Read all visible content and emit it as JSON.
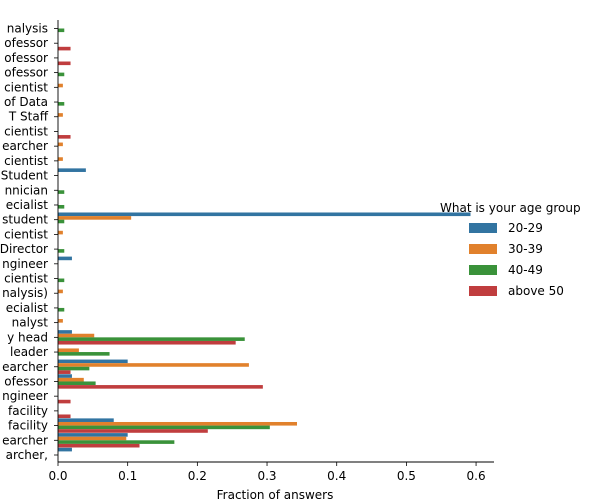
{
  "chart_data": {
    "type": "bar",
    "orientation": "horizontal",
    "xlabel": "Fraction of answers",
    "ylabel": "",
    "xlim": [
      0,
      0.62
    ],
    "xticks": [
      0.0,
      0.1,
      0.2,
      0.3,
      0.4,
      0.5,
      0.6
    ],
    "xtick_labels": [
      "0.0",
      "0.1",
      "0.2",
      "0.3",
      "0.4",
      "0.5",
      "0.6"
    ],
    "grid": false,
    "legend": {
      "title": "What is your age group",
      "placement": "right",
      "entries": [
        "20-29",
        "30-39",
        "40-49",
        "above 50"
      ]
    },
    "categories": [
      "nalysis",
      "ofessor",
      "ofessor",
      "ofessor",
      "cientist",
      "of Data",
      "T Staff",
      "cientist",
      "earcher",
      "cientist",
      "Student",
      "nnician",
      "ecialist",
      "student",
      "cientist",
      "Director",
      "ngineer",
      "cientist",
      "nalysis)",
      "ecialist",
      "nalyst",
      "y head",
      "leader",
      "earcher",
      "ofessor",
      "ngineer",
      "facility",
      "facility",
      "earcher",
      "archer,"
    ],
    "series": [
      {
        "name": "20-29",
        "color": "#3274a1",
        "values": [
          0,
          0,
          0,
          0,
          0,
          0,
          0,
          0,
          0,
          0,
          0.04,
          0,
          0,
          0.592,
          0,
          0,
          0.02,
          0,
          0,
          0,
          0,
          0.02,
          0,
          0.1,
          0.02,
          0,
          0,
          0.08,
          0.1,
          0.02
        ]
      },
      {
        "name": "30-39",
        "color": "#e1812c",
        "values": [
          0,
          0,
          0,
          0,
          0.007,
          0,
          0.007,
          0,
          0.007,
          0.007,
          0,
          0,
          0,
          0.105,
          0.007,
          0,
          0,
          0,
          0.007,
          0,
          0.007,
          0.052,
          0.03,
          0.274,
          0.037,
          0,
          0,
          0.343,
          0.098,
          0
        ]
      },
      {
        "name": "40-49",
        "color": "#3a923a",
        "values": [
          0.009,
          0,
          0,
          0.009,
          0,
          0.009,
          0,
          0,
          0,
          0,
          0,
          0.009,
          0.009,
          0.009,
          0,
          0.009,
          0,
          0.009,
          0,
          0.009,
          0,
          0.268,
          0.074,
          0.045,
          0.054,
          0,
          0,
          0.304,
          0.167,
          0
        ]
      },
      {
        "name": "above 50",
        "color": "#c03d3e",
        "values": [
          0,
          0.018,
          0.018,
          0,
          0,
          0,
          0,
          0.018,
          0,
          0,
          0,
          0,
          0,
          0,
          0,
          0,
          0,
          0,
          0,
          0,
          0,
          0.255,
          0,
          0.018,
          0.294,
          0.018,
          0.018,
          0.215,
          0.117,
          0
        ]
      }
    ]
  }
}
